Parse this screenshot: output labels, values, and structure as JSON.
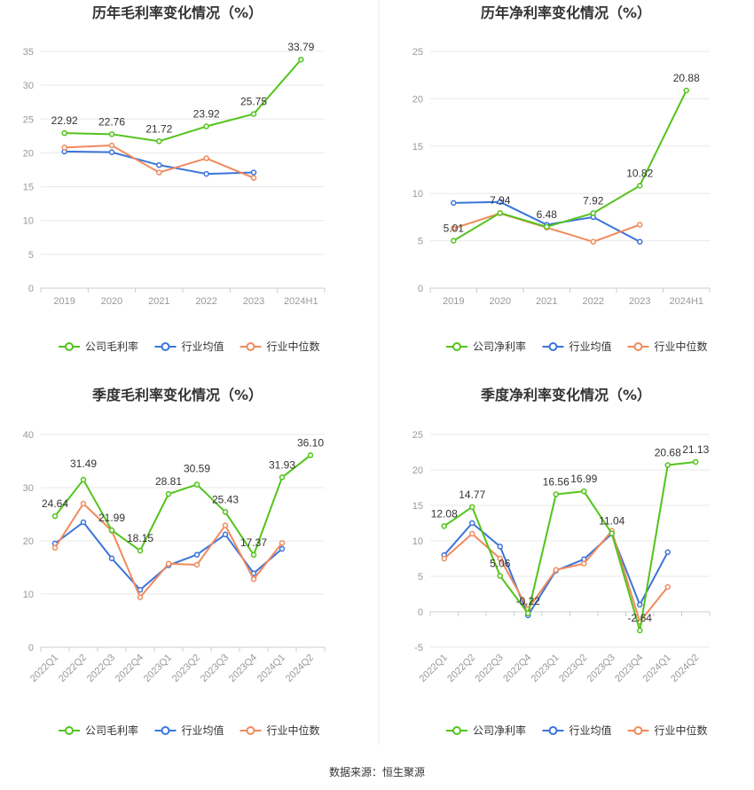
{
  "source_text": "数据来源：恒生聚源",
  "legend_labels": {
    "industry_mean": "行业均值",
    "industry_median": "行业中位数"
  },
  "colors": {
    "company": "#52c41a",
    "industry_mean": "#3b74d9",
    "industry_median": "#f08a5d",
    "grid": "#e8e8e8",
    "axis": "#cccccc",
    "tick_text": "#999999",
    "divider": "#eeeeee"
  },
  "chart_data": [
    {
      "type": "line",
      "title": "历年毛利率变化情况（%）",
      "categories": [
        "2019",
        "2020",
        "2021",
        "2022",
        "2023",
        "2024H1"
      ],
      "ylim": [
        0,
        35
      ],
      "yticks": [
        0,
        5,
        10,
        15,
        20,
        25,
        30,
        35
      ],
      "rotate_x_labels": false,
      "grid": true,
      "legend_position": "bottom",
      "series": [
        {
          "name": "公司毛利率",
          "role": "company",
          "values": [
            22.92,
            22.76,
            21.72,
            23.92,
            25.75,
            33.79
          ],
          "show_labels": true
        },
        {
          "name": "行业均值",
          "role": "industry_mean",
          "values": [
            20.2,
            20.1,
            18.2,
            16.9,
            17.1,
            null
          ],
          "show_labels": false
        },
        {
          "name": "行业中位数",
          "role": "industry_median",
          "values": [
            20.8,
            21.1,
            17.1,
            19.2,
            16.3,
            null
          ],
          "show_labels": false
        }
      ]
    },
    {
      "type": "line",
      "title": "历年净利率变化情况（%）",
      "categories": [
        "2019",
        "2020",
        "2021",
        "2022",
        "2023",
        "2024H1"
      ],
      "ylim": [
        0,
        25
      ],
      "yticks": [
        0,
        5,
        10,
        15,
        20,
        25
      ],
      "rotate_x_labels": false,
      "grid": true,
      "legend_position": "bottom",
      "series": [
        {
          "name": "公司净利率",
          "role": "company",
          "values": [
            5.01,
            7.94,
            6.48,
            7.92,
            10.82,
            20.88
          ],
          "show_labels": true
        },
        {
          "name": "行业均值",
          "role": "industry_mean",
          "values": [
            9.0,
            9.1,
            6.7,
            7.5,
            4.9,
            null
          ],
          "show_labels": false
        },
        {
          "name": "行业中位数",
          "role": "industry_median",
          "values": [
            6.3,
            7.9,
            6.4,
            4.9,
            6.7,
            null
          ],
          "show_labels": false
        }
      ]
    },
    {
      "type": "line",
      "title": "季度毛利率变化情况（%）",
      "categories": [
        "2022Q1",
        "2022Q2",
        "2022Q3",
        "2022Q4",
        "2023Q1",
        "2023Q2",
        "2023Q3",
        "2023Q4",
        "2024Q1",
        "2024Q2"
      ],
      "ylim": [
        0,
        40
      ],
      "yticks": [
        0,
        10,
        20,
        30,
        40
      ],
      "rotate_x_labels": true,
      "grid": true,
      "legend_position": "bottom",
      "series": [
        {
          "name": "公司毛利率",
          "role": "company",
          "values": [
            24.64,
            31.49,
            21.99,
            18.15,
            28.81,
            30.59,
            25.43,
            17.37,
            31.93,
            36.1
          ],
          "value_labels": [
            "24.64",
            "31.49",
            "21.99",
            "18.15",
            "28.81",
            "30.59",
            "25.43",
            "17.37",
            "31.93",
            "36.10"
          ],
          "show_labels": true
        },
        {
          "name": "行业均值",
          "role": "industry_mean",
          "values": [
            19.5,
            23.5,
            16.7,
            10.8,
            15.4,
            17.4,
            21.2,
            13.9,
            18.5,
            null
          ],
          "show_labels": false
        },
        {
          "name": "行业中位数",
          "role": "industry_median",
          "values": [
            18.7,
            27.0,
            21.9,
            9.4,
            15.7,
            15.5,
            22.9,
            12.8,
            19.6,
            null
          ],
          "show_labels": false
        }
      ]
    },
    {
      "type": "line",
      "title": "季度净利率变化情况（%）",
      "categories": [
        "2022Q1",
        "2022Q2",
        "2022Q3",
        "2022Q4",
        "2023Q1",
        "2023Q2",
        "2023Q3",
        "2023Q4",
        "2024Q1",
        "2024Q2"
      ],
      "ylim": [
        -5,
        25
      ],
      "yticks": [
        -5,
        0,
        5,
        10,
        15,
        20,
        25
      ],
      "rotate_x_labels": true,
      "grid": true,
      "legend_position": "bottom",
      "series": [
        {
          "name": "公司净利率",
          "role": "company",
          "values": [
            12.08,
            14.77,
            5.06,
            -0.22,
            16.56,
            16.99,
            11.04,
            -2.64,
            20.68,
            21.13
          ],
          "show_labels": true
        },
        {
          "name": "行业均值",
          "role": "industry_mean",
          "values": [
            8.0,
            12.5,
            9.2,
            -0.5,
            5.8,
            7.4,
            11.0,
            1.0,
            8.4,
            null
          ],
          "show_labels": false
        },
        {
          "name": "行业中位数",
          "role": "industry_median",
          "values": [
            7.5,
            11.0,
            7.5,
            0.4,
            5.9,
            6.8,
            11.4,
            -1.4,
            3.5,
            null
          ],
          "show_labels": false
        }
      ]
    }
  ]
}
